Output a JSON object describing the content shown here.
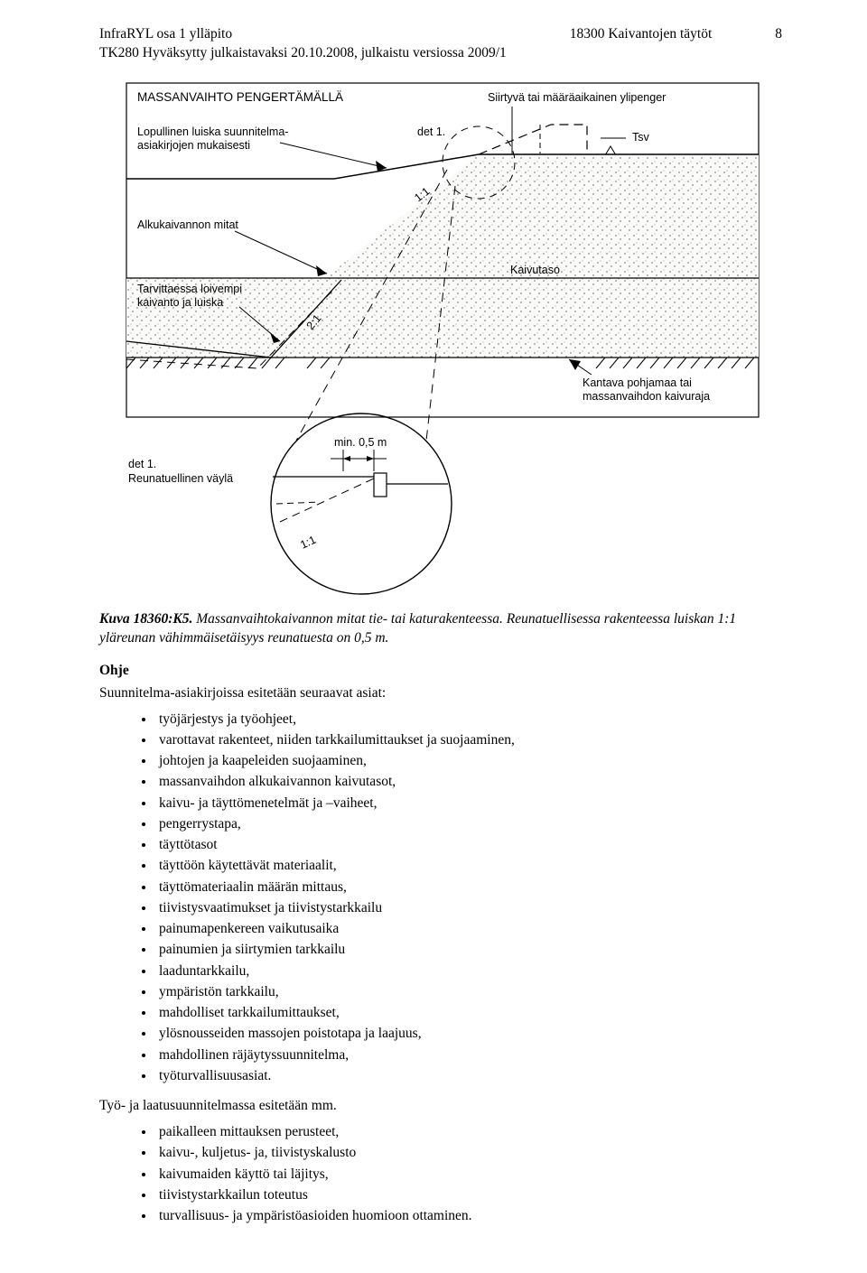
{
  "header": {
    "left_line1": "InfraRYL osa 1 ylläpito",
    "left_line2": "TK280 Hyväksytty julkaistavaksi 20.10.2008, julkaistu versiossa 2009/1",
    "center": "18300 Kaivantojen täytöt",
    "page_number": "8"
  },
  "diagram": {
    "title": "MASSANVAIHTO PENGERTÄMÄLLÄ",
    "label_ylipenger": "Siirtyvä tai määräaikainen ylipenger",
    "label_luiska1": "Lopullinen luiska suunnitelma-",
    "label_luiska2": "asiakirjojen mukaisesti",
    "label_det1": "det 1.",
    "label_tsv": "Tsv",
    "label_alkukaivannon": "Alkukaivannon mitat",
    "label_tarv1": "Tarvittaessa loivempi",
    "label_tarv2": "kaivanto ja luiska",
    "label_kaivutaso": "Kaivutaso",
    "label_kantava1": "Kantava pohjamaa tai",
    "label_kantava2": "massanvaihdon kaivuraja",
    "label_det_bottom1": "det 1.",
    "label_det_bottom2": "Reunatuellinen väylä",
    "label_min": "min. 0,5 m",
    "label_11a": "1:1",
    "label_21": "2:1",
    "label_11b": "1:1",
    "colors": {
      "line": "#000000",
      "bg": "#ffffff",
      "fill_dots": "#f5f5f4"
    }
  },
  "caption": {
    "id": "Kuva 18360:K5.",
    "text": " Massanvaihtokaivannon mitat tie- tai katurakenteessa. Reunatuellisessa rakenteessa luiskan 1:1 yläreunan vähimmäisetäisyys reunatuesta on 0,5 m."
  },
  "ohje_heading": "Ohje",
  "ohje_intro": "Suunnitelma-asiakirjoissa esitetään seuraavat asiat:",
  "ohje_items": [
    "työjärjestys ja työohjeet,",
    "varottavat rakenteet, niiden tarkkailumittaukset ja suojaaminen,",
    "johtojen ja kaapeleiden suojaaminen,",
    "massanvaihdon alkukaivannon kaivutasot,",
    "kaivu- ja täyttömenetelmät ja –vaiheet,",
    "pengerrystapa,",
    "täyttötasot",
    "täyttöön käytettävät materiaalit,",
    "täyttömateriaalin määrän mittaus,",
    "tiivistysvaatimukset ja tiivistystarkkailu",
    "painumapenkereen vaikutusaika",
    "painumien ja siirtymien tarkkailu",
    "laaduntarkkailu,",
    "ympäristön tarkkailu,",
    "mahdolliset tarkkailumittaukset,",
    "ylösnousseiden massojen poistotapa ja laajuus,",
    "mahdollinen räjäytyssuunnitelma,",
    "työturvallisuusasiat."
  ],
  "tyo_intro": "Työ- ja laatusuunnitelmassa esitetään mm.",
  "tyo_items": [
    "paikalleen mittauksen perusteet,",
    "kaivu-, kuljetus- ja, tiivistyskalusto",
    "kaivumaiden käyttö tai läjitys,",
    "tiivistystarkkailun toteutus",
    "turvallisuus- ja ympäristöasioiden huomioon ottaminen."
  ]
}
